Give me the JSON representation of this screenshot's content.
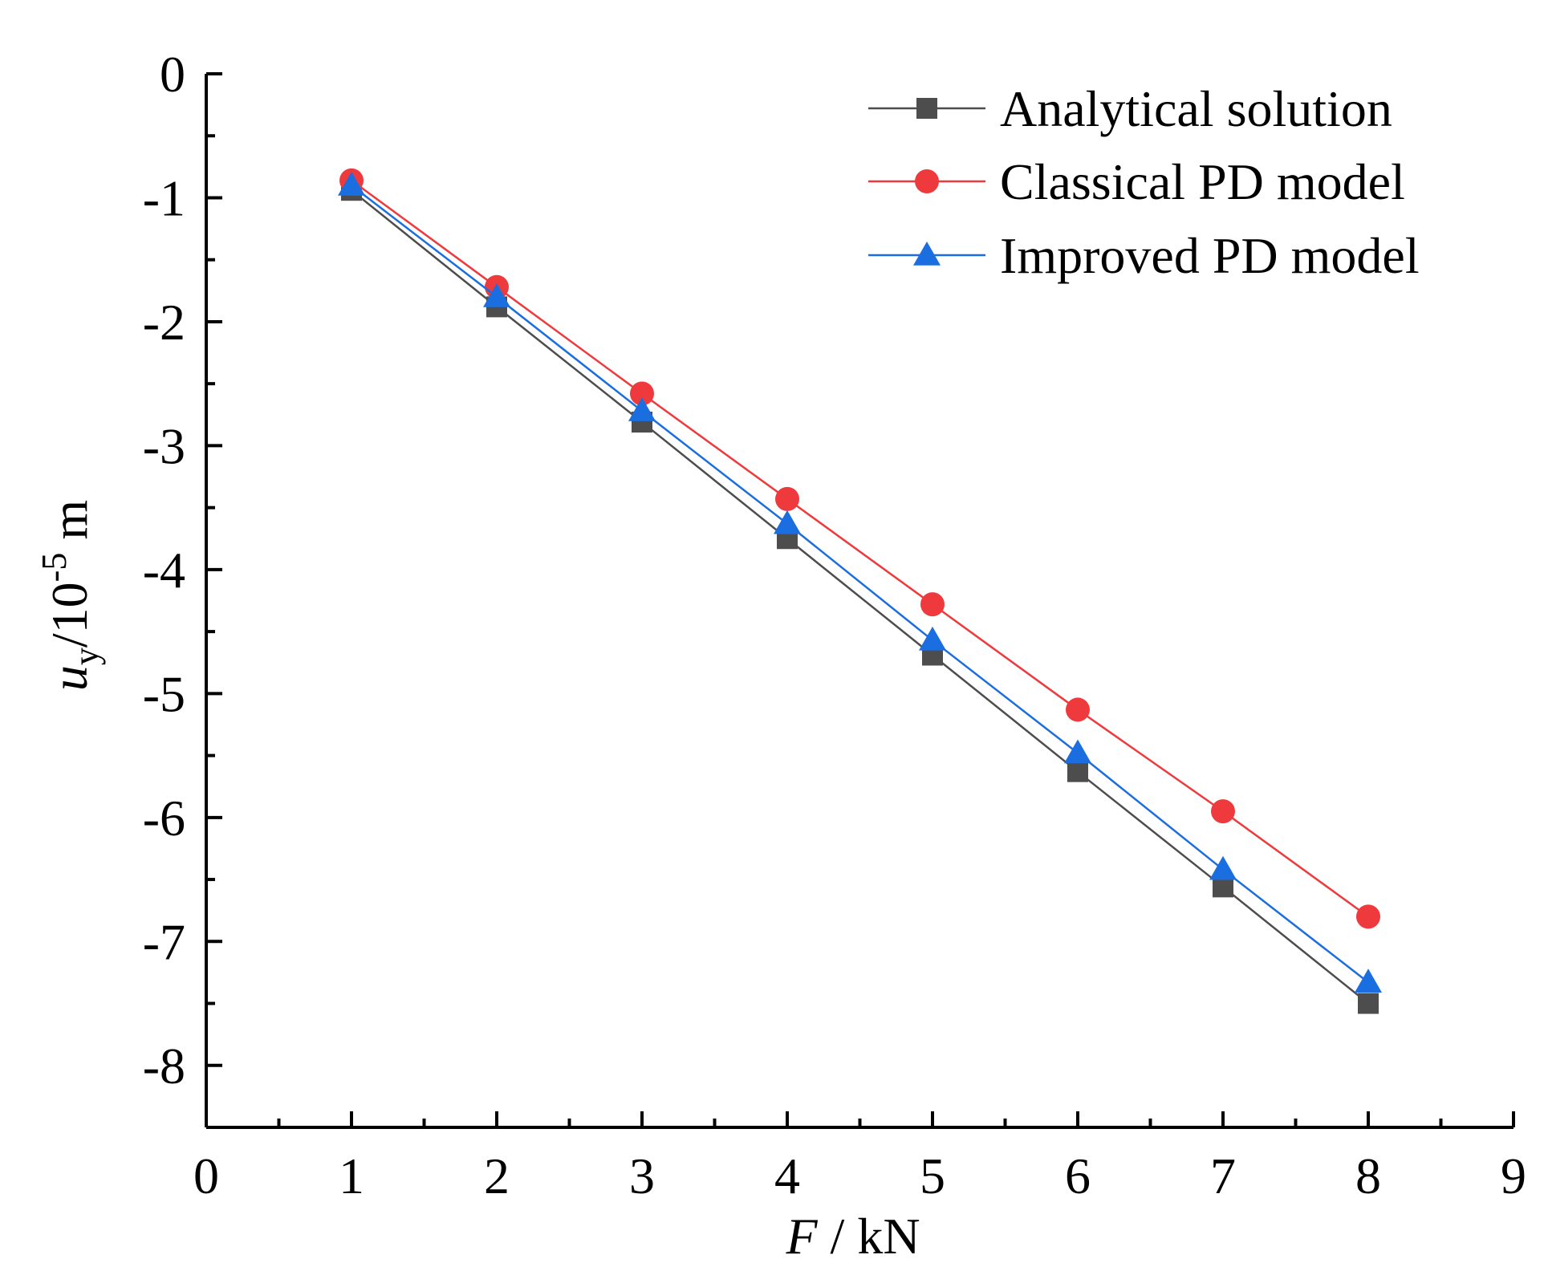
{
  "chart_data": {
    "type": "line",
    "title": "",
    "xlabel": {
      "var": "F",
      "rest": " / kN"
    },
    "ylabel": {
      "var": "u",
      "sub": "y",
      "mid": "/10",
      "sup": "-5",
      "unit": " m"
    },
    "xlim": [
      0,
      9
    ],
    "ylim": [
      -8.5,
      0
    ],
    "xticks": [
      0,
      1,
      2,
      3,
      4,
      5,
      6,
      7,
      8,
      9
    ],
    "yticks": [
      0,
      -1,
      -2,
      -3,
      -4,
      -5,
      -6,
      -7,
      -8
    ],
    "legend_position": "top-right",
    "grid": false,
    "series": [
      {
        "name": "Analytical solution",
        "color": "#4d4d4d",
        "marker": "square",
        "x": [
          1,
          2,
          3,
          4,
          5,
          6,
          7,
          8
        ],
        "y": [
          -0.94,
          -1.88,
          -2.81,
          -3.75,
          -4.69,
          -5.63,
          -6.56,
          -7.5
        ]
      },
      {
        "name": "Classical PD model",
        "color": "#ef3a3d",
        "marker": "circle",
        "x": [
          1,
          2,
          3,
          4,
          5,
          6,
          7,
          8
        ],
        "y": [
          -0.86,
          -1.72,
          -2.58,
          -3.43,
          -4.28,
          -5.13,
          -5.95,
          -6.8
        ]
      },
      {
        "name": "Improved PD model",
        "color": "#1a6ee0",
        "marker": "triangle",
        "x": [
          1,
          2,
          3,
          4,
          5,
          6,
          7,
          8
        ],
        "y": [
          -0.9,
          -1.8,
          -2.72,
          -3.63,
          -4.57,
          -5.48,
          -6.42,
          -7.33
        ]
      }
    ]
  }
}
